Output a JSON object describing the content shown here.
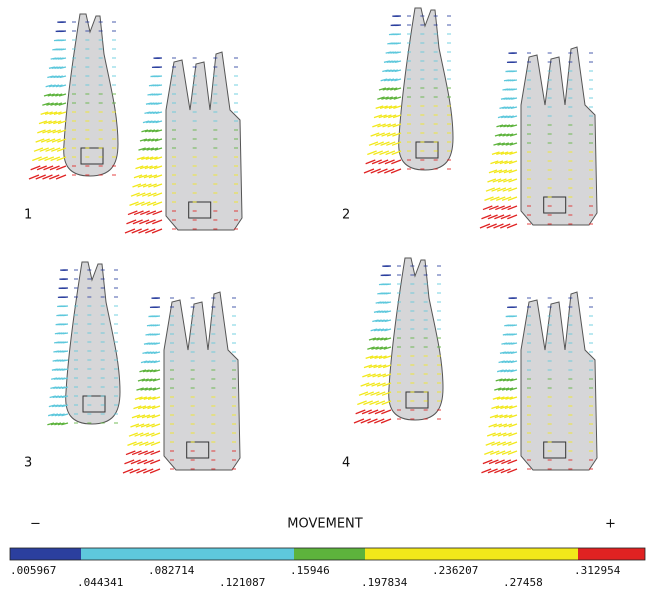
{
  "panels": [
    {
      "label": "1"
    },
    {
      "label": "2"
    },
    {
      "label": "3"
    },
    {
      "label": "4"
    }
  ],
  "legend": {
    "minus": "−",
    "title": "MOVEMENT",
    "plus": "+",
    "levels": [
      ".005967",
      ".044341",
      ".082714",
      ".121087",
      ".15946",
      ".197834",
      ".236207",
      ".27458",
      ".312954"
    ],
    "colors": [
      "#2b3f9e",
      "#5ec8dc",
      "#5ec8dc",
      "#5ec8dc",
      "#5db33c",
      "#f2e81a",
      "#f2e81a",
      "#f2e81a",
      "#e02222"
    ]
  }
}
